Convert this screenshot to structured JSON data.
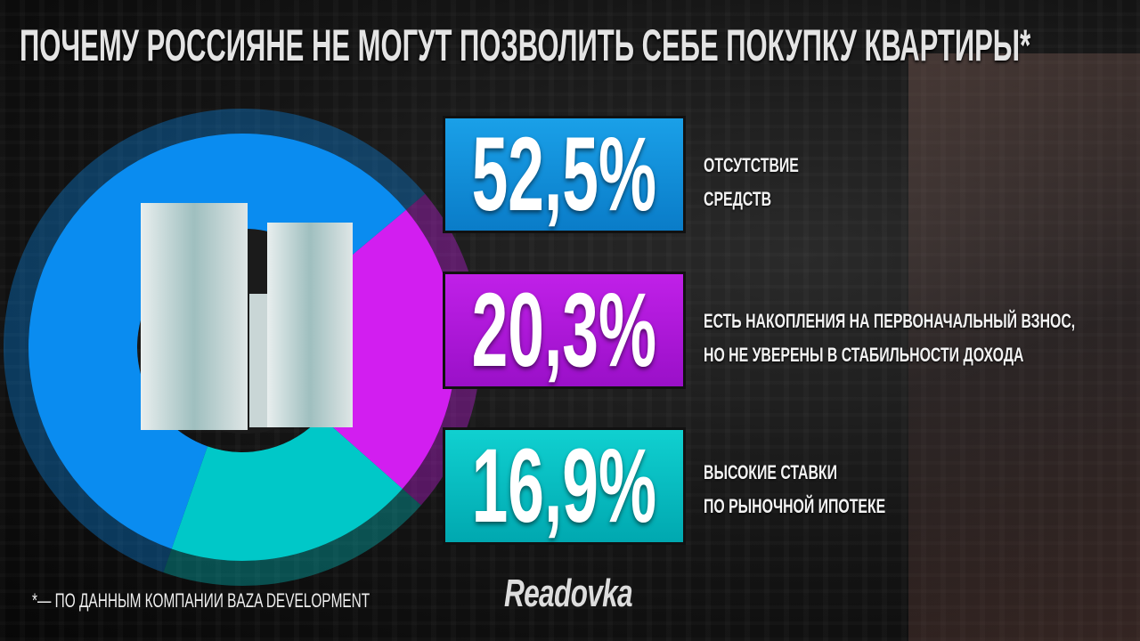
{
  "title": "ПОЧЕМУ РОССИЯНЕ НЕ МОГУТ ПОЗВОЛИТЬ СЕБЕ ПОКУПКУ КВАРТИРЫ*",
  "footnote": "*— ПО ДАННЫМ КОМПАНИИ BAZA DEVELOPMENT",
  "logo": "Readovka",
  "chart_data": {
    "type": "pie",
    "variant": "donut",
    "title": "ПОЧЕМУ РОССИЯНЕ НЕ МОГУТ ПОЗВОЛИТЬ СЕБЕ ПОКУПКУ КВАРТИРЫ*",
    "unit": "%",
    "slices": [
      {
        "value": 52.5,
        "label_value": "52,5%",
        "label_lines": [
          "ОТСУТСТВИЕ",
          "СРЕДСТВ"
        ],
        "color": "#0a8cf0"
      },
      {
        "value": 20.3,
        "label_value": "20,3%",
        "label_lines": [
          "ЕСТЬ НАКОПЛЕНИЯ НА ПЕРВОНАЧАЛЬНЫЙ ВЗНОС,",
          "НО НЕ УВЕРЕНЫ В СТАБИЛЬНОСТИ ДОХОДА"
        ],
        "color": "#d21ef0"
      },
      {
        "value": 16.9,
        "label_value": "16,9%",
        "label_lines": [
          "ВЫСОКИЕ СТАВКИ",
          "ПО РЫНОЧНОЙ ИПОТЕКЕ"
        ],
        "color": "#00c8c8"
      }
    ],
    "legend": "right"
  }
}
